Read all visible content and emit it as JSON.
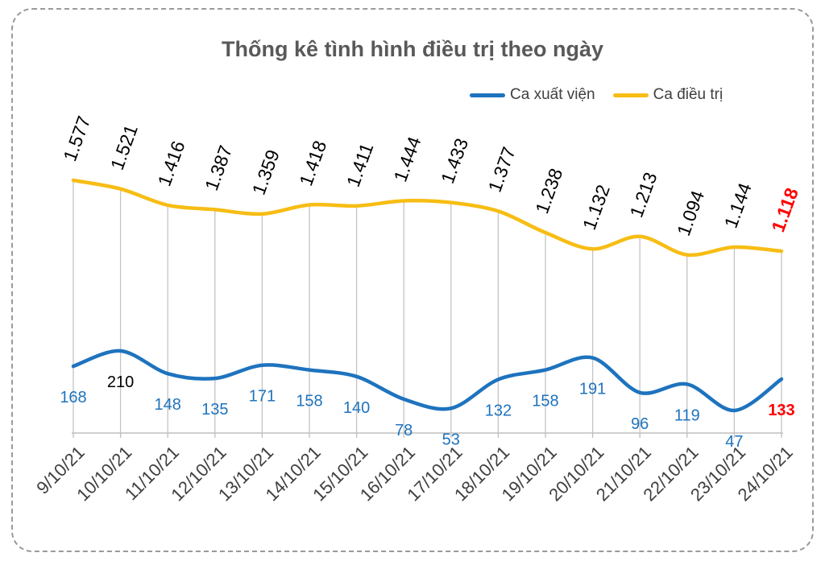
{
  "chart_data": {
    "type": "line",
    "title": "Thống kê tình hình điều trị theo ngày",
    "categories": [
      "9/10/21",
      "10/10/21",
      "11/10/21",
      "12/10/21",
      "13/10/21",
      "14/10/21",
      "15/10/21",
      "16/10/21",
      "17/10/21",
      "18/10/21",
      "19/10/21",
      "20/10/21",
      "21/10/21",
      "22/10/21",
      "23/10/21",
      "24/10/21"
    ],
    "series": [
      {
        "name": "Ca xuất viện",
        "color": "#1e73be",
        "values": [
          168,
          210,
          148,
          135,
          171,
          158,
          140,
          78,
          53,
          132,
          158,
          191,
          96,
          119,
          47,
          133
        ],
        "labels": [
          "168",
          "210",
          "148",
          "135",
          "171",
          "158",
          "140",
          "78",
          "53",
          "132",
          "158",
          "191",
          "96",
          "119",
          "47",
          "133"
        ]
      },
      {
        "name": "Ca điều trị",
        "color": "#f7bd14",
        "values": [
          1577,
          1521,
          1416,
          1387,
          1359,
          1418,
          1411,
          1444,
          1433,
          1377,
          1238,
          1132,
          1213,
          1094,
          1144,
          1118
        ],
        "labels": [
          "1.577",
          "1.521",
          "1.416",
          "1.387",
          "1.359",
          "1.418",
          "1.411",
          "1.444",
          "1.433",
          "1.377",
          "1.238",
          "1.132",
          "1.213",
          "1.094",
          "1.144",
          "1.118"
        ]
      }
    ],
    "highlight_color": "#ff0000",
    "label_color_default": "#000000",
    "grid": "vertical",
    "legend_position": "top-right"
  }
}
